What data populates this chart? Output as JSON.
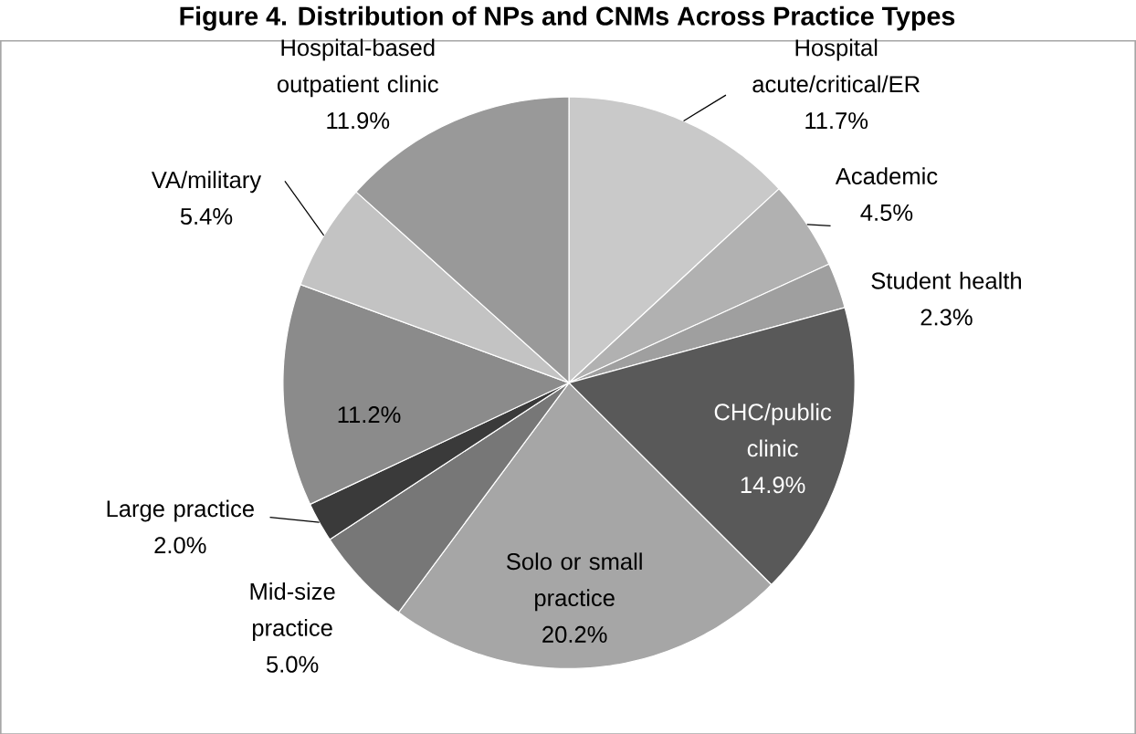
{
  "chart_data": {
    "type": "pie",
    "title": "Figure 4. Distribution of NPs and CNMs Across Practice Types",
    "categories": [
      "Hospital acute/critical/ER",
      "Academic",
      "Student health",
      "CHC/public clinic",
      "Solo or small practice",
      "Mid-size practice",
      "Large practice",
      null,
      "VA/military",
      "Hospital-based outpatient clinic"
    ],
    "values": [
      11.7,
      4.5,
      2.3,
      14.9,
      20.2,
      5.0,
      2.0,
      11.2,
      5.4,
      11.9
    ],
    "value_labels": [
      "11.7%",
      "4.5%",
      "2.3%",
      "14.9%",
      "20.2%",
      "5.0%",
      "2.0%",
      "11.2%",
      "5.4%",
      "11.9%"
    ],
    "colors": [
      "#c9c9c9",
      "#b1b1b1",
      "#9f9f9f",
      "#595959",
      "#a6a6a6",
      "#777777",
      "#3a3a3a",
      "#8b8b8b",
      "#c3c3c3",
      "#999999"
    ]
  }
}
